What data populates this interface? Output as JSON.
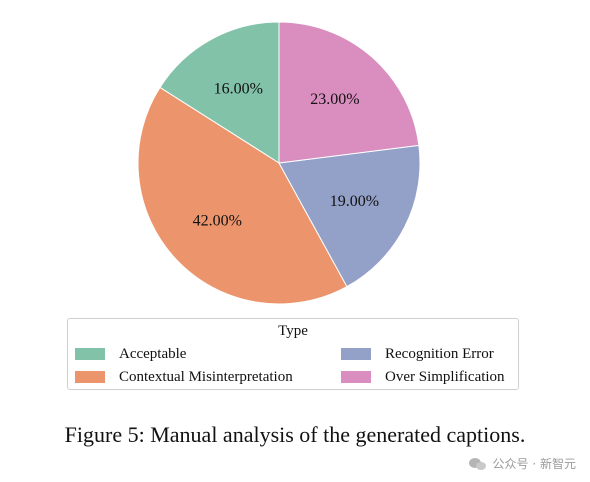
{
  "chart_data": {
    "type": "pie",
    "title": "",
    "legend_title": "Type",
    "legend_position": "bottom",
    "start_angle_deg": 90,
    "direction": "counterclockwise",
    "slices": [
      {
        "name": "Acceptable",
        "value": 16.0,
        "label": "16.00%",
        "color": "#82c2a9"
      },
      {
        "name": "Contextual Misinterpretation",
        "value": 42.0,
        "label": "42.00%",
        "color": "#ec956c"
      },
      {
        "name": "Recognition Error",
        "value": 19.0,
        "label": "19.00%",
        "color": "#93a0c8"
      },
      {
        "name": "Over Simplification",
        "value": 23.0,
        "label": "23.00%",
        "color": "#da8ec0"
      }
    ]
  },
  "caption": "Figure 5: Manual analysis of the generated captions.",
  "watermark": {
    "text": "公众号 · 新智元",
    "icon": "wechat-icon"
  }
}
